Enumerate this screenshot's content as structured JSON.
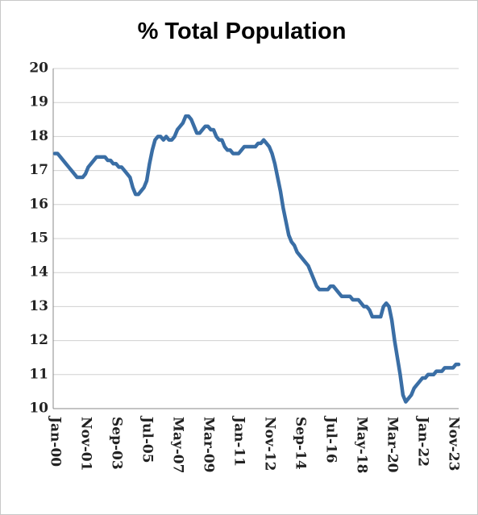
{
  "chart_data": {
    "type": "line",
    "title": "% Total Population",
    "categories": [
      "Jan-00",
      null,
      null,
      null,
      null,
      null,
      null,
      null,
      null,
      null,
      null,
      "Nov-01",
      null,
      null,
      null,
      null,
      null,
      null,
      null,
      null,
      null,
      null,
      "Sep-03",
      null,
      null,
      null,
      null,
      null,
      null,
      null,
      null,
      null,
      null,
      "Jul-05",
      null,
      null,
      null,
      null,
      null,
      null,
      null,
      null,
      null,
      null,
      "May-07",
      null,
      null,
      null,
      null,
      null,
      null,
      null,
      null,
      null,
      null,
      "Mar-09",
      null,
      null,
      null,
      null,
      null,
      null,
      null,
      null,
      null,
      null,
      "Jan-11",
      null,
      null,
      null,
      null,
      null,
      null,
      null,
      null,
      null,
      null,
      "Nov-12",
      null,
      null,
      null,
      null,
      null,
      null,
      null,
      null,
      null,
      null,
      "Sep-14",
      null,
      null,
      null,
      null,
      null,
      null,
      null,
      null,
      null,
      null,
      "Jul-16",
      null,
      null,
      null,
      null,
      null,
      null,
      null,
      null,
      null,
      null,
      "May-18",
      null,
      null,
      null,
      null,
      null,
      null,
      null,
      null,
      null,
      null,
      "Mar-20",
      null,
      null,
      null,
      null,
      null,
      null,
      null,
      null,
      null,
      null,
      "Jan-22",
      null,
      null,
      null,
      null,
      null,
      null,
      null,
      null,
      null,
      null,
      "Nov-23",
      null,
      null
    ],
    "values": [
      17.5,
      17.5,
      17.4,
      17.3,
      17.2,
      17.1,
      17.0,
      16.9,
      16.8,
      16.8,
      16.8,
      16.9,
      17.1,
      17.2,
      17.3,
      17.4,
      17.4,
      17.4,
      17.4,
      17.3,
      17.3,
      17.2,
      17.2,
      17.1,
      17.1,
      17.0,
      16.9,
      16.8,
      16.5,
      16.3,
      16.3,
      16.4,
      16.5,
      16.7,
      17.2,
      17.6,
      17.9,
      18.0,
      18.0,
      17.9,
      18.0,
      17.9,
      17.9,
      18.0,
      18.2,
      18.3,
      18.4,
      18.6,
      18.6,
      18.5,
      18.3,
      18.1,
      18.1,
      18.2,
      18.3,
      18.3,
      18.2,
      18.2,
      18.0,
      17.9,
      17.9,
      17.7,
      17.6,
      17.6,
      17.5,
      17.5,
      17.5,
      17.6,
      17.7,
      17.7,
      17.7,
      17.7,
      17.7,
      17.8,
      17.8,
      17.9,
      17.8,
      17.7,
      17.5,
      17.2,
      16.8,
      16.4,
      15.9,
      15.5,
      15.1,
      14.9,
      14.8,
      14.6,
      14.5,
      14.4,
      14.3,
      14.2,
      14.0,
      13.8,
      13.6,
      13.5,
      13.5,
      13.5,
      13.5,
      13.6,
      13.6,
      13.5,
      13.4,
      13.3,
      13.3,
      13.3,
      13.3,
      13.2,
      13.2,
      13.2,
      13.1,
      13.0,
      13.0,
      12.9,
      12.7,
      12.7,
      12.7,
      12.7,
      13.0,
      13.1,
      13.0,
      12.6,
      12.0,
      11.5,
      11.0,
      10.4,
      10.2,
      10.3,
      10.4,
      10.6,
      10.7,
      10.8,
      10.9,
      10.9,
      11.0,
      11.0,
      11.0,
      11.1,
      11.1,
      11.1,
      11.2,
      11.2,
      11.2,
      11.2,
      11.3,
      11.3
    ],
    "color": "#3a6ea5",
    "ylim": [
      10,
      20
    ],
    "yticks": [
      10,
      11,
      12,
      13,
      14,
      15,
      16,
      17,
      18,
      19,
      20
    ],
    "grid": true
  }
}
